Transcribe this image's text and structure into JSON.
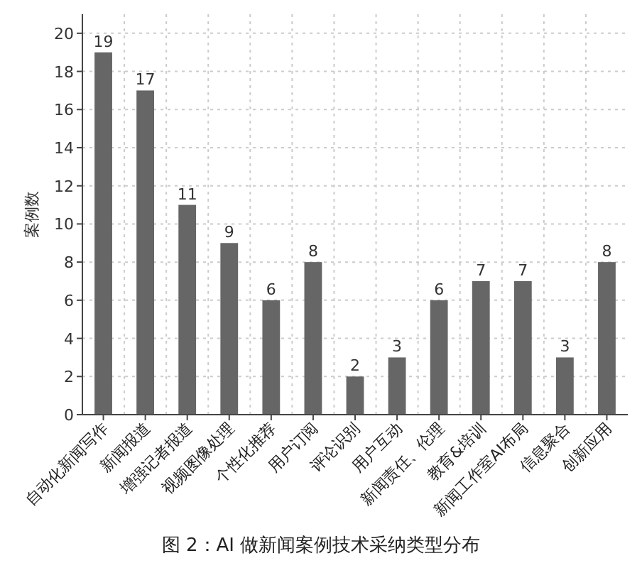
{
  "chart_data": {
    "type": "bar",
    "title": "图 2：AI 做新闻案例技术采纳类型分布",
    "ylabel": "案例数",
    "categories": [
      "自动化新闻写作",
      "新闻报道",
      "增强记者报道",
      "视频图像处理",
      "个性化推荐",
      "用户订阅",
      "评论识别",
      "用户互动",
      "新闻责任、伦理",
      "教育&培训",
      "新闻工作室AI布局",
      "信息聚合",
      "创新应用"
    ],
    "series": [
      {
        "color": "#666666",
        "values": [
          19,
          17,
          11,
          9,
          6,
          8,
          2,
          3,
          6,
          7,
          7,
          3,
          8
        ]
      }
    ],
    "ylim": [
      0,
      21
    ],
    "yticks": [
      0,
      2,
      4,
      6,
      8,
      10,
      12,
      14,
      16,
      18,
      20
    ],
    "grid": true,
    "data_labels": true
  }
}
